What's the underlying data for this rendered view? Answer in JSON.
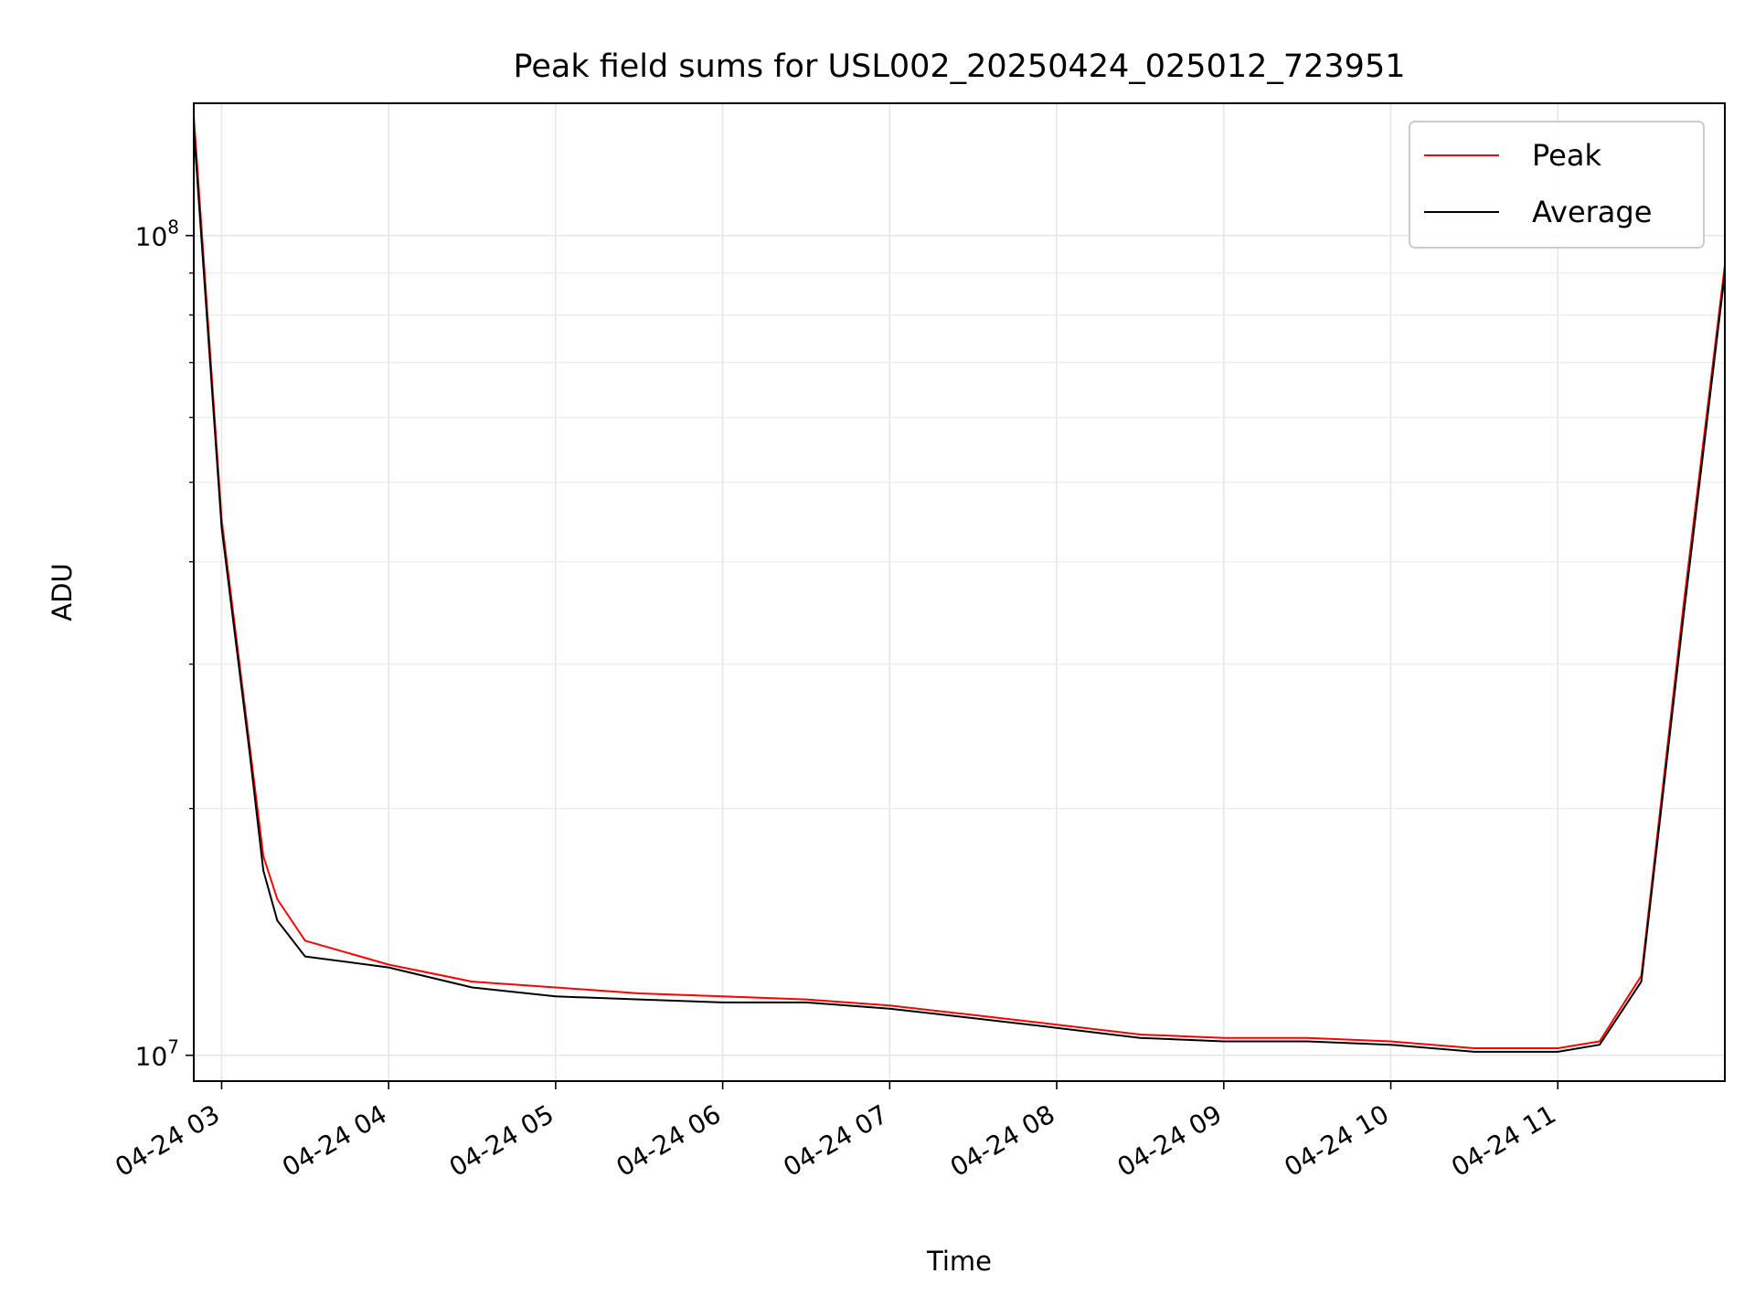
{
  "chart_data": {
    "type": "line",
    "title": "Peak field sums for USL002_20250424_025012_723951",
    "xlabel": "Time",
    "ylabel": "ADU",
    "yscale": "log",
    "grid": true,
    "legend_position": "top-right",
    "xlim": [
      "2025-04-24 02:50",
      "2025-04-24 12:00"
    ],
    "ylim": [
      9300000,
      145000000
    ],
    "x_ticks": [
      "04-24 03",
      "04-24 04",
      "04-24 05",
      "04-24 06",
      "04-24 07",
      "04-24 08",
      "04-24 09",
      "04-24 10",
      "04-24 11"
    ],
    "y_ticks": [
      {
        "value": 10000000,
        "base": "10",
        "exp": "7"
      },
      {
        "value": 100000000,
        "base": "10",
        "exp": "8"
      }
    ],
    "x": [
      "2025-04-24 02:50",
      "2025-04-24 03:00",
      "2025-04-24 03:10",
      "2025-04-24 03:15",
      "2025-04-24 03:20",
      "2025-04-24 03:30",
      "2025-04-24 04:00",
      "2025-04-24 04:30",
      "2025-04-24 05:00",
      "2025-04-24 05:30",
      "2025-04-24 06:00",
      "2025-04-24 06:30",
      "2025-04-24 07:00",
      "2025-04-24 07:30",
      "2025-04-24 08:00",
      "2025-04-24 08:30",
      "2025-04-24 09:00",
      "2025-04-24 09:30",
      "2025-04-24 10:00",
      "2025-04-24 10:30",
      "2025-04-24 11:00",
      "2025-04-24 11:15",
      "2025-04-24 11:30",
      "2025-04-24 11:45",
      "2025-04-24 12:00"
    ],
    "series": [
      {
        "name": "Peak",
        "color": "#ff0000",
        "values": [
          140000000,
          45000000,
          24000000,
          17500000,
          15500000,
          13800000,
          12900000,
          12300000,
          12100000,
          11900000,
          11800000,
          11700000,
          11500000,
          11200000,
          10900000,
          10600000,
          10500000,
          10500000,
          10400000,
          10200000,
          10200000,
          10400000,
          12500000,
          35000000,
          92000000
        ]
      },
      {
        "name": "Average",
        "color": "#000000",
        "values": [
          135000000,
          44000000,
          23500000,
          16800000,
          14600000,
          13200000,
          12800000,
          12100000,
          11800000,
          11700000,
          11600000,
          11600000,
          11400000,
          11100000,
          10800000,
          10500000,
          10400000,
          10400000,
          10300000,
          10100000,
          10100000,
          10300000,
          12300000,
          34000000,
          90000000
        ]
      }
    ]
  }
}
